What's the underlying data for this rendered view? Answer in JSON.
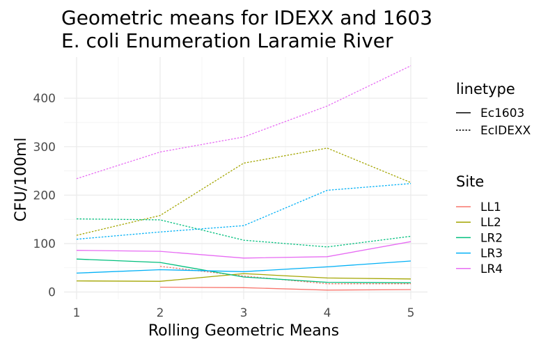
{
  "chart_data": {
    "type": "line",
    "title_lines": [
      "Geometric means for IDEXX and 1603",
      "E. coli Enumeration Laramie River"
    ],
    "xlabel": "Rolling Geometric Means",
    "ylabel": "CFU/100ml",
    "x": [
      1,
      2,
      3,
      4,
      5
    ],
    "x_ticks": [
      "1",
      "2",
      "3",
      "4",
      "5"
    ],
    "y_ticks": [
      0,
      100,
      200,
      300,
      400
    ],
    "y_tick_labels": [
      "0",
      "100",
      "200",
      "300",
      "400"
    ],
    "xlim": [
      0.85,
      5.2
    ],
    "ylim": [
      -15,
      485
    ],
    "grid": true,
    "legend_position": "right",
    "linetype_legend": {
      "title": "linetype",
      "items": [
        {
          "label": "Ec1603",
          "dash": "solid"
        },
        {
          "label": "EcIDEXX",
          "dash": "dotted"
        }
      ]
    },
    "site_legend": {
      "title": "Site",
      "items": [
        {
          "label": "LL1",
          "color": "#F8766D"
        },
        {
          "label": "LL2",
          "color": "#A3A500"
        },
        {
          "label": "LR2",
          "color": "#00BF7D"
        },
        {
          "label": "LR3",
          "color": "#00B0F6"
        },
        {
          "label": "LR4",
          "color": "#E76BF3"
        }
      ]
    },
    "series": [
      {
        "site": "LL1",
        "linetype": "Ec1603",
        "color": "#F8766D",
        "values": [
          null,
          10,
          9,
          4,
          5
        ]
      },
      {
        "site": "LL1",
        "linetype": "EcIDEXX",
        "color": "#F8766D",
        "values": [
          null,
          53,
          33,
          17,
          17
        ]
      },
      {
        "site": "LL2",
        "linetype": "Ec1603",
        "color": "#A3A500",
        "values": [
          23,
          22,
          38,
          29,
          27
        ]
      },
      {
        "site": "LL2",
        "linetype": "EcIDEXX",
        "color": "#A3A500",
        "values": [
          117,
          158,
          266,
          297,
          226
        ]
      },
      {
        "site": "LR2",
        "linetype": "Ec1603",
        "color": "#00BF7D",
        "values": [
          68,
          61,
          31,
          20,
          19
        ]
      },
      {
        "site": "LR2",
        "linetype": "EcIDEXX",
        "color": "#00BF7D",
        "values": [
          151,
          149,
          107,
          93,
          115
        ]
      },
      {
        "site": "LR3",
        "linetype": "Ec1603",
        "color": "#00B0F6",
        "values": [
          39,
          46,
          42,
          52,
          64
        ]
      },
      {
        "site": "LR3",
        "linetype": "EcIDEXX",
        "color": "#00B0F6",
        "values": [
          109,
          124,
          137,
          210,
          224
        ]
      },
      {
        "site": "LR4",
        "linetype": "Ec1603",
        "color": "#E76BF3",
        "values": [
          86,
          84,
          70,
          73,
          104
        ]
      },
      {
        "site": "LR4",
        "linetype": "EcIDEXX",
        "color": "#E76BF3",
        "values": [
          234,
          289,
          320,
          384,
          467
        ]
      }
    ]
  }
}
